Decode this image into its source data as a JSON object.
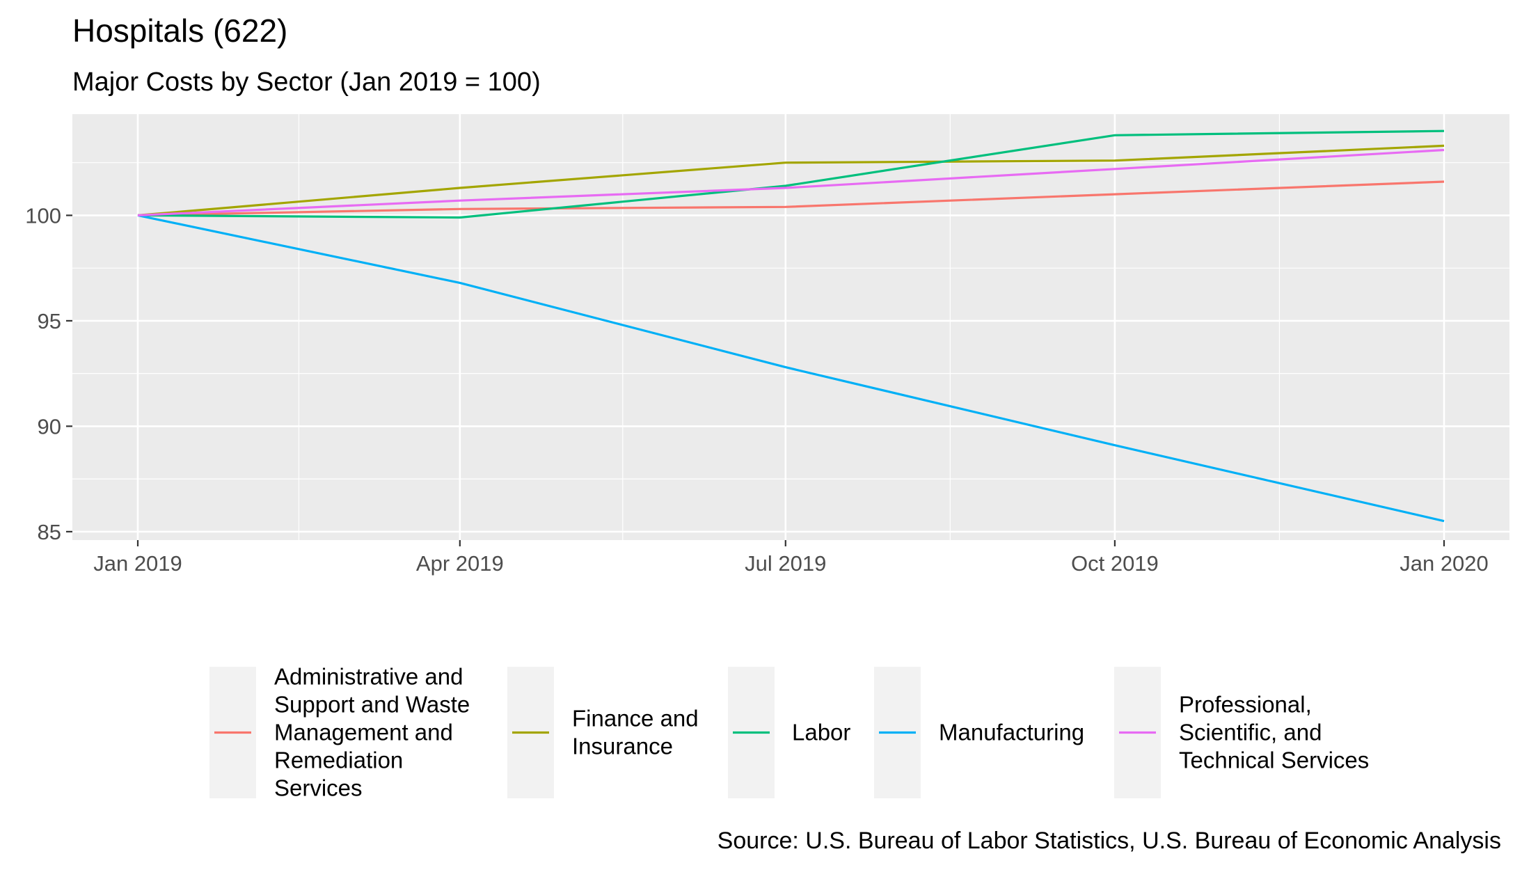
{
  "chart_data": {
    "type": "line",
    "title": "Hospitals (622)",
    "subtitle": "Major Costs by Sector (Jan 2019 = 100)",
    "caption": "Source: U.S. Bureau of Labor Statistics, U.S. Bureau of Economic Analysis",
    "xlabel": "",
    "ylabel": "",
    "x": [
      "Jan 2019",
      "Apr 2019",
      "Jul 2019",
      "Oct 2019",
      "Jan 2020"
    ],
    "ylim": [
      84.6,
      104.8
    ],
    "yticks": [
      85,
      90,
      95,
      100
    ],
    "grid": true,
    "legend_position": "bottom",
    "series": [
      {
        "name": "Administrative and Support and Waste Management and Remediation Services",
        "legend_lines": [
          "Administrative and",
          "Support and Waste",
          "Management and",
          "Remediation",
          "Services"
        ],
        "color": "#F8766D",
        "values": [
          100.0,
          100.3,
          100.4,
          101.0,
          101.6
        ]
      },
      {
        "name": "Finance and Insurance",
        "legend_lines": [
          "Finance and",
          "Insurance"
        ],
        "color": "#A3A500",
        "values": [
          100.0,
          101.3,
          102.5,
          102.6,
          103.3
        ]
      },
      {
        "name": "Labor",
        "legend_lines": [
          "Labor"
        ],
        "color": "#00BF7D",
        "values": [
          100.0,
          99.9,
          101.4,
          103.8,
          104.0
        ]
      },
      {
        "name": "Manufacturing",
        "legend_lines": [
          "Manufacturing"
        ],
        "color": "#00B0F6",
        "values": [
          100.0,
          96.8,
          92.8,
          89.1,
          85.5
        ]
      },
      {
        "name": "Professional, Scientific, and Technical Services",
        "legend_lines": [
          "Professional,",
          "Scientific, and",
          "Technical Services"
        ],
        "color": "#E76BF3",
        "values": [
          100.0,
          100.7,
          101.3,
          102.2,
          103.1
        ]
      }
    ]
  }
}
